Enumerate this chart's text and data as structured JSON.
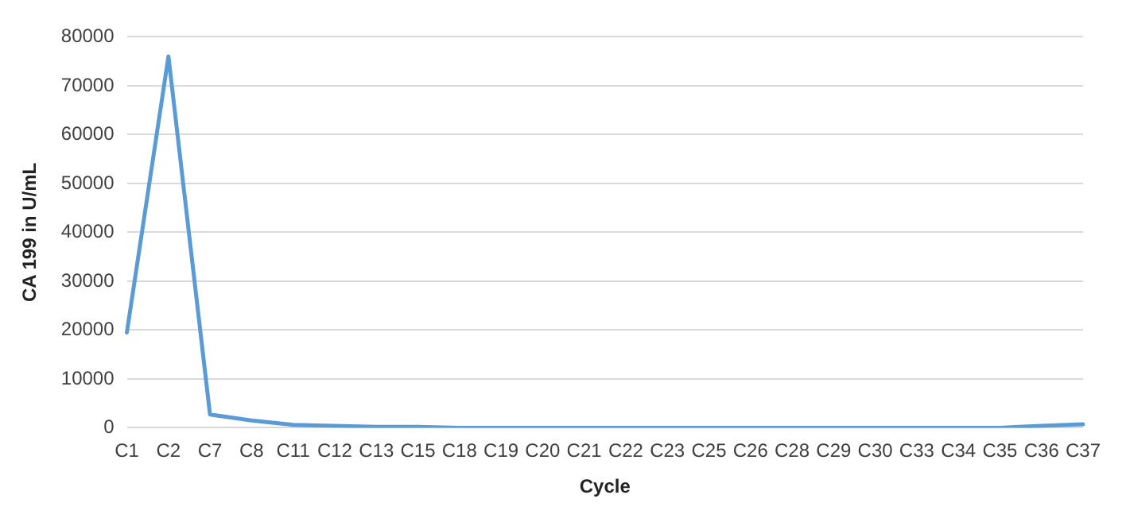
{
  "chart_data": {
    "type": "line",
    "xlabel": "Cycle",
    "ylabel": "CA 199 in U/mL",
    "categories": [
      "C1",
      "C2",
      "C7",
      "C8",
      "C11",
      "C12",
      "C13",
      "C15",
      "C18",
      "C19",
      "C20",
      "C21",
      "C22",
      "C23",
      "C25",
      "C26",
      "C28",
      "C29",
      "C30",
      "C33",
      "C34",
      "C35",
      "C36",
      "C37"
    ],
    "series": [
      {
        "color": "#5b9bd5",
        "values": [
          19500,
          76000,
          2700,
          1500,
          600,
          400,
          200,
          200,
          0,
          0,
          0,
          0,
          0,
          0,
          0,
          0,
          0,
          0,
          0,
          0,
          0,
          0,
          400,
          700
        ]
      }
    ],
    "ylim": [
      0,
      80000
    ],
    "yticks": [
      0,
      10000,
      20000,
      30000,
      40000,
      50000,
      60000,
      70000,
      80000
    ],
    "grid": "y",
    "legend": false,
    "marker": "none",
    "line_style": "solid"
  }
}
